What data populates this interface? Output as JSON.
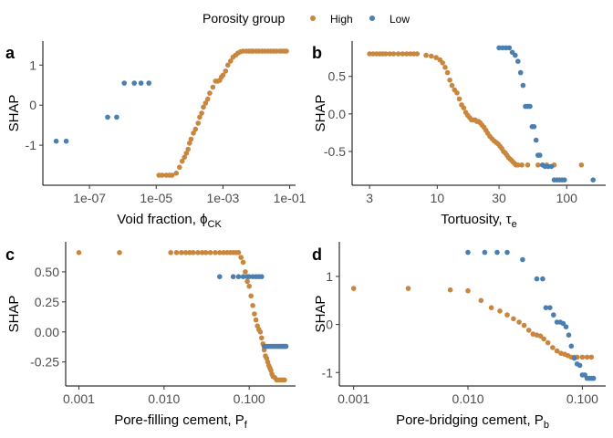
{
  "legend": {
    "title": "Porosity group",
    "entries": [
      {
        "label": "High",
        "color": "#C8863E"
      },
      {
        "label": "Low",
        "color": "#4A7FB0"
      }
    ]
  },
  "chart_data": [
    {
      "type": "scatter",
      "panel": "a",
      "title": "",
      "xlabel": "Void fraction, ",
      "xlabel_symbol": "ϕ",
      "xlabel_sub": "CK",
      "ylabel": "SHAP",
      "xscale": "log",
      "xlim": [
        4e-09,
        0.15
      ],
      "ylim": [
        -2.0,
        1.6
      ],
      "xticks": [
        1e-07,
        1e-05,
        0.001,
        0.1
      ],
      "xtick_labels": [
        "1e-07",
        "1e-05",
        "1e-03",
        "1e-01"
      ],
      "yticks": [
        -1,
        0,
        1
      ],
      "ytick_labels": [
        "-1",
        "0",
        "1"
      ],
      "series": [
        {
          "name": "Low",
          "x": [
            1e-08,
            2e-08,
            3.5e-07,
            6.5e-07,
            1.1e-06,
            2.2e-06,
            3.5e-06,
            6e-06
          ],
          "y": [
            -0.9,
            -0.9,
            -0.3,
            -0.3,
            0.55,
            0.55,
            0.55,
            0.55
          ]
        },
        {
          "name": "High",
          "x": [
            1.2e-05,
            1.5e-05,
            2e-05,
            2.5e-05,
            3e-05,
            4e-05,
            5e-05,
            6e-05,
            7e-05,
            8e-05,
            9e-05,
            0.0001,
            0.00011,
            0.00013,
            0.00015,
            0.00018,
            0.0002,
            0.00023,
            0.00026,
            0.0003,
            0.00035,
            0.0004,
            0.0005,
            0.0006,
            0.0007,
            0.0008,
            0.0009,
            0.001,
            0.0012,
            0.0014,
            0.0017,
            0.002,
            0.0024,
            0.0028,
            0.0033,
            0.004,
            0.005,
            0.006,
            0.007,
            0.008,
            0.01,
            0.012,
            0.015,
            0.018,
            0.022,
            0.027,
            0.033,
            0.04,
            0.05,
            0.06,
            0.07,
            0.08
          ],
          "y": [
            -1.75,
            -1.75,
            -1.75,
            -1.75,
            -1.75,
            -1.7,
            -1.55,
            -1.4,
            -1.3,
            -1.2,
            -1.1,
            -0.95,
            -0.85,
            -0.7,
            -0.6,
            -0.45,
            -0.3,
            -0.2,
            -0.05,
            0.05,
            0.15,
            0.3,
            0.45,
            0.6,
            0.6,
            0.62,
            0.7,
            0.75,
            0.85,
            1.0,
            1.1,
            1.2,
            1.25,
            1.3,
            1.33,
            1.35,
            1.35,
            1.35,
            1.35,
            1.35,
            1.35,
            1.35,
            1.35,
            1.35,
            1.35,
            1.35,
            1.35,
            1.35,
            1.35,
            1.35,
            1.35,
            1.35
          ]
        }
      ]
    },
    {
      "type": "scatter",
      "panel": "b",
      "title": "",
      "xlabel": "Tortuosity, ",
      "xlabel_symbol": "τ",
      "xlabel_sub": "e",
      "ylabel": "SHAP",
      "xscale": "log",
      "xlim": [
        2.2,
        200
      ],
      "ylim": [
        -0.95,
        0.97
      ],
      "xticks": [
        3,
        10,
        30,
        100
      ],
      "xtick_labels": [
        "3",
        "10",
        "30",
        "100"
      ],
      "yticks": [
        -0.5,
        0,
        0.5
      ],
      "ytick_labels": [
        "-0.5",
        "0.0",
        "0.5"
      ],
      "series": [
        {
          "name": "High",
          "x": [
            3.0,
            3.2,
            3.4,
            3.6,
            3.8,
            4.0,
            4.3,
            4.6,
            5.0,
            5.4,
            5.8,
            6.2,
            6.6,
            7.0,
            8.2,
            9.0,
            9.8,
            10.5,
            11.0,
            11.5,
            12.0,
            12.5,
            13.0,
            13.6,
            14.2,
            14.8,
            15.4,
            16.0,
            16.6,
            17.2,
            17.8,
            18.4,
            19.0,
            19.6,
            20.2,
            20.8,
            21.5,
            22.2,
            23.0,
            23.8,
            24.6,
            25.5,
            26.5,
            27.5,
            28.5,
            29.5,
            30.5,
            31.5,
            32.5,
            33.5,
            34.5,
            35.5,
            36.5,
            37.5,
            38.5,
            39.5,
            40.5,
            42.0,
            45.0,
            50.0,
            60.0,
            70.0,
            80.0,
            130.0
          ],
          "y": [
            0.8,
            0.8,
            0.8,
            0.8,
            0.8,
            0.8,
            0.8,
            0.8,
            0.8,
            0.8,
            0.8,
            0.8,
            0.8,
            0.8,
            0.78,
            0.77,
            0.75,
            0.72,
            0.68,
            0.62,
            0.55,
            0.45,
            0.38,
            0.32,
            0.28,
            0.2,
            0.12,
            0.08,
            0.02,
            -0.02,
            -0.05,
            -0.08,
            -0.08,
            -0.08,
            -0.1,
            -0.1,
            -0.12,
            -0.15,
            -0.18,
            -0.22,
            -0.26,
            -0.3,
            -0.33,
            -0.36,
            -0.38,
            -0.4,
            -0.43,
            -0.46,
            -0.5,
            -0.52,
            -0.55,
            -0.58,
            -0.6,
            -0.62,
            -0.64,
            -0.66,
            -0.68,
            -0.68,
            -0.68,
            -0.68,
            -0.68,
            -0.68,
            -0.68,
            -0.68
          ]
        },
        {
          "name": "Low",
          "x": [
            30,
            32,
            34,
            36,
            38,
            40,
            42,
            44,
            46,
            48,
            50,
            52,
            54,
            56,
            58,
            60,
            62,
            65,
            68,
            72,
            76,
            80,
            84,
            88,
            92,
            96,
            160
          ],
          "y": [
            0.88,
            0.88,
            0.88,
            0.88,
            0.82,
            0.78,
            0.7,
            0.55,
            0.38,
            0.1,
            0.1,
            0.1,
            -0.17,
            -0.17,
            -0.35,
            -0.55,
            -0.55,
            -0.68,
            -0.7,
            -0.7,
            -0.7,
            -0.88,
            -0.88,
            -0.88,
            -0.88,
            -0.88,
            -0.88
          ]
        }
      ]
    },
    {
      "type": "scatter",
      "panel": "c",
      "title": "",
      "xlabel": "Pore-filling cement, P",
      "xlabel_symbol": "",
      "xlabel_sub": "f",
      "ylabel": "SHAP",
      "xscale": "log",
      "xlim": [
        0.0007,
        0.35
      ],
      "ylim": [
        -0.45,
        0.75
      ],
      "xticks": [
        0.001,
        0.01,
        0.1
      ],
      "xtick_labels": [
        "0.001",
        "0.010",
        "0.100"
      ],
      "yticks": [
        -0.25,
        0,
        0.25,
        0.5
      ],
      "ytick_labels": [
        "-0.25",
        "0.00",
        "0.25",
        "0.50"
      ],
      "series": [
        {
          "name": "High",
          "x": [
            0.001,
            0.003,
            0.012,
            0.014,
            0.016,
            0.018,
            0.02,
            0.022,
            0.025,
            0.028,
            0.031,
            0.035,
            0.04,
            0.045,
            0.05,
            0.055,
            0.06,
            0.065,
            0.07,
            0.075,
            0.08,
            0.085,
            0.09,
            0.095,
            0.1,
            0.105,
            0.11,
            0.115,
            0.12,
            0.125,
            0.13,
            0.135,
            0.14,
            0.145,
            0.15,
            0.155,
            0.16,
            0.165,
            0.17,
            0.175,
            0.18,
            0.185,
            0.19,
            0.2,
            0.21,
            0.22,
            0.23,
            0.24,
            0.25,
            0.26
          ],
          "y": [
            0.66,
            0.66,
            0.66,
            0.66,
            0.66,
            0.66,
            0.66,
            0.66,
            0.66,
            0.66,
            0.66,
            0.66,
            0.66,
            0.66,
            0.66,
            0.66,
            0.66,
            0.66,
            0.66,
            0.66,
            0.62,
            0.58,
            0.5,
            0.42,
            0.38,
            0.3,
            0.22,
            0.15,
            0.1,
            0.05,
            0.02,
            0.0,
            -0.05,
            -0.1,
            -0.15,
            -0.2,
            -0.22,
            -0.25,
            -0.28,
            -0.3,
            -0.32,
            -0.35,
            -0.37,
            -0.38,
            -0.4,
            -0.4,
            -0.4,
            -0.4,
            -0.4,
            -0.4
          ]
        },
        {
          "name": "Low",
          "x": [
            0.045,
            0.065,
            0.075,
            0.085,
            0.095,
            0.1,
            0.11,
            0.12,
            0.13,
            0.14,
            0.15,
            0.16,
            0.17,
            0.18,
            0.19,
            0.2,
            0.21,
            0.22,
            0.23,
            0.24,
            0.25,
            0.26,
            0.27
          ],
          "y": [
            0.46,
            0.46,
            0.46,
            0.46,
            0.46,
            0.46,
            0.46,
            0.46,
            0.46,
            0.46,
            -0.12,
            -0.12,
            -0.12,
            -0.12,
            -0.12,
            -0.12,
            -0.12,
            -0.12,
            -0.12,
            -0.12,
            -0.12,
            -0.12,
            -0.12
          ]
        }
      ]
    },
    {
      "type": "scatter",
      "panel": "d",
      "title": "",
      "xlabel": "Pore-bridging cement, P",
      "xlabel_symbol": "",
      "xlabel_sub": "b",
      "ylabel": "SHAP",
      "xscale": "log",
      "xlim": [
        0.00075,
        0.16
      ],
      "ylim": [
        -1.28,
        1.72
      ],
      "xticks": [
        0.001,
        0.01,
        0.1
      ],
      "xtick_labels": [
        "0.001",
        "0.010",
        "0.100"
      ],
      "yticks": [
        -1,
        0,
        1
      ],
      "ytick_labels": [
        "-1",
        "0",
        "1"
      ],
      "series": [
        {
          "name": "High",
          "x": [
            0.001,
            0.003,
            0.007,
            0.01,
            0.013,
            0.016,
            0.019,
            0.022,
            0.025,
            0.028,
            0.031,
            0.034,
            0.037,
            0.04,
            0.043,
            0.046,
            0.05,
            0.055,
            0.06,
            0.065,
            0.07,
            0.075,
            0.08,
            0.085,
            0.09,
            0.1,
            0.11,
            0.12
          ],
          "y": [
            0.75,
            0.75,
            0.72,
            0.7,
            0.5,
            0.35,
            0.28,
            0.2,
            0.12,
            0.05,
            -0.02,
            -0.12,
            -0.2,
            -0.22,
            -0.24,
            -0.3,
            -0.38,
            -0.48,
            -0.55,
            -0.6,
            -0.62,
            -0.65,
            -0.68,
            -0.68,
            -0.68,
            -0.68,
            -0.68,
            -0.68
          ]
        },
        {
          "name": "Low",
          "x": [
            0.01,
            0.014,
            0.018,
            0.022,
            0.03,
            0.04,
            0.045,
            0.048,
            0.052,
            0.056,
            0.06,
            0.064,
            0.068,
            0.072,
            0.076,
            0.08,
            0.085,
            0.09,
            0.095,
            0.1,
            0.105,
            0.11,
            0.115,
            0.12,
            0.125
          ],
          "y": [
            1.5,
            1.5,
            1.5,
            1.5,
            1.35,
            0.95,
            0.95,
            0.35,
            0.35,
            0.2,
            0.05,
            0.05,
            0.02,
            -0.05,
            -0.22,
            -0.45,
            -0.7,
            -0.82,
            -0.85,
            -1.05,
            -1.05,
            -1.12,
            -1.12,
            -1.12,
            -1.12
          ]
        }
      ]
    }
  ]
}
